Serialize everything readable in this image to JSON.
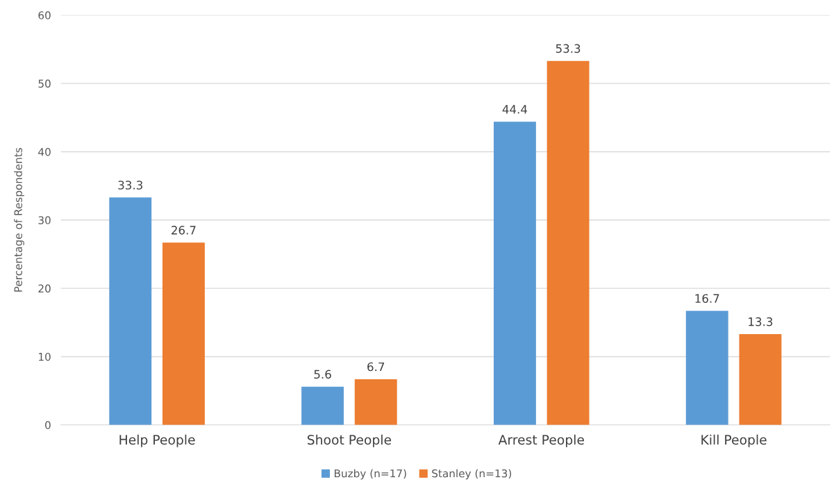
{
  "chart_data": {
    "type": "bar",
    "ylabel": "Percentage of Respondents",
    "categories": [
      "Help People",
      "Shoot People",
      "Arrest People",
      "Kill People"
    ],
    "series": [
      {
        "name": "Buzby (n=17)",
        "color": "#5b9bd5",
        "values": [
          33.3,
          5.6,
          44.4,
          16.7
        ]
      },
      {
        "name": "Stanley (n=13)",
        "color": "#ed7d31",
        "values": [
          26.7,
          6.7,
          53.3,
          13.3
        ]
      }
    ],
    "ylim": [
      0,
      60
    ],
    "yticks": [
      0,
      10,
      20,
      30,
      40,
      50,
      60
    ],
    "grid": "y",
    "legend": "bottom",
    "data_labels": true
  }
}
